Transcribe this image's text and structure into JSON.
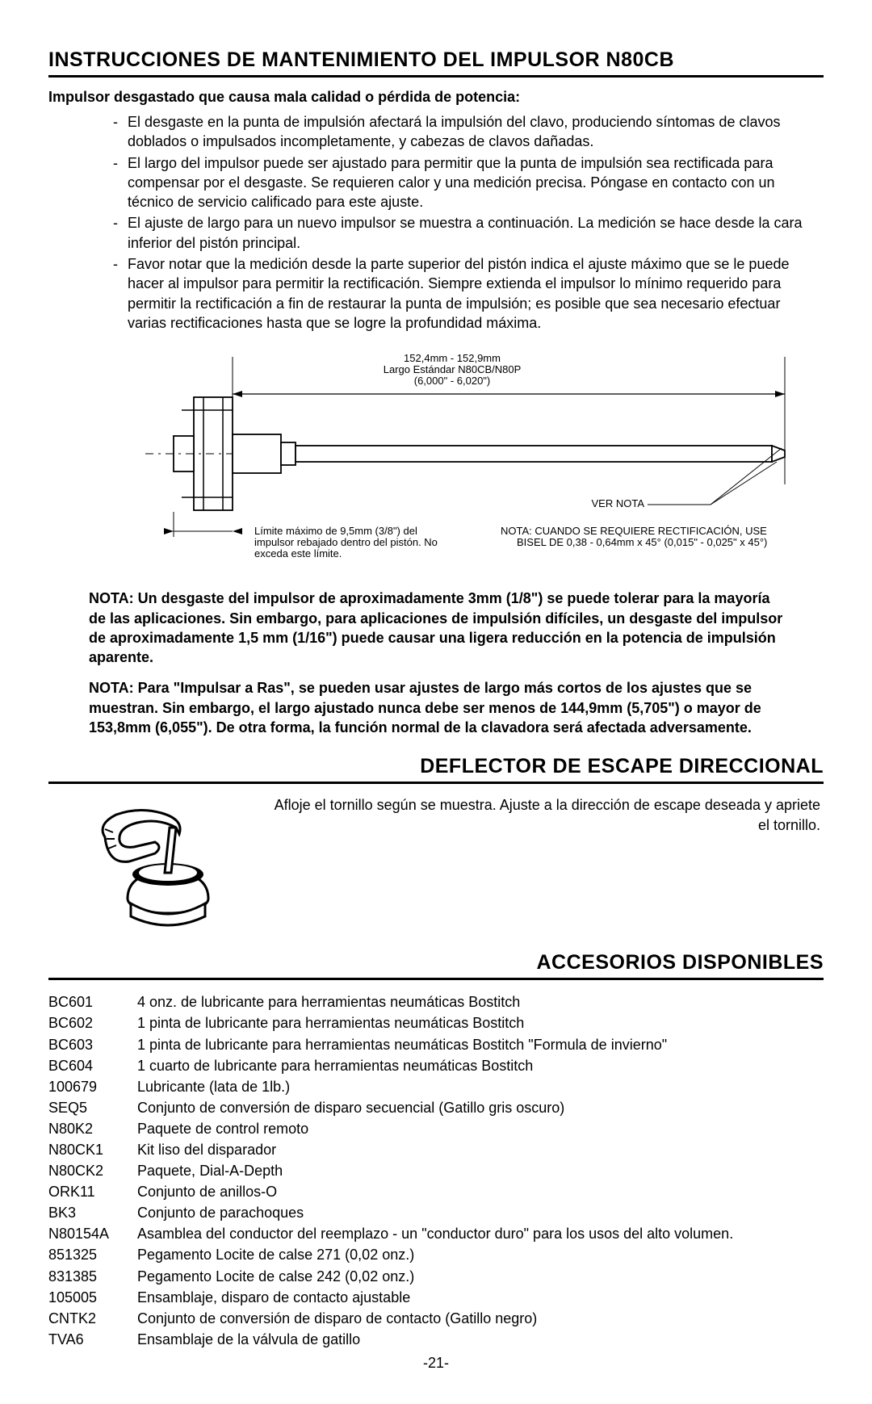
{
  "section1": {
    "title": "INSTRUCCIONES DE MANTENIMIENTO DEL IMPULSOR N80CB",
    "lead": "Impulsor desgastado que causa mala calidad o pérdida de potencia:",
    "bullets": [
      "El desgaste en la punta de impulsión afectará la impulsión del clavo, produciendo síntomas de clavos doblados o impulsados incompletamente, y cabezas de clavos dañadas.",
      "El largo del impulsor puede ser ajustado para permitir que la punta de impulsión sea rectificada para compensar por el desgaste. Se requieren calor y una medición precisa. Póngase en contacto con un técnico de servicio calificado para este ajuste.",
      "El ajuste de largo para un nuevo impulsor se muestra a continuación. La medición se hace desde la cara inferior del pistón principal.",
      "Favor notar que la medición desde la parte superior del pistón indica el ajuste máximo que se le puede hacer al impulsor para permitir la rectificación. Siempre extienda el impulsor lo mínimo requerido para permitir la rectificación a fin de restaurar la punta de impulsión; es posible que sea necesario efectuar varias rectificaciones hasta que se logre la profundidad máxima."
    ]
  },
  "diagram": {
    "top_label_line1": "152,4mm - 152,9mm",
    "top_label_line2": "Largo Estándar N80CB/N80P",
    "top_label_line3": "(6,000\" - 6,020\")",
    "ver_nota": "VER NOTA",
    "left_note_line1": "Límite máximo de 9,5mm (3/8\") del",
    "left_note_line2": "impulsor rebajado dentro del pistón. No",
    "left_note_line3": "exceda este límite.",
    "right_note_line1": "NOTA: CUANDO SE REQUIERE RECTIFICACIÓN, USE",
    "right_note_line2": "BISEL DE 0,38 - 0,64mm x 45° (0,015\" - 0,025\" x 45°)",
    "stroke": "#000000",
    "bg": "#ffffff"
  },
  "notes": {
    "n1": "NOTA: Un desgaste del impulsor de aproximadamente 3mm (1/8\") se puede tolerar para la mayoría de las aplicaciones. Sin embargo, para aplicaciones de impulsión difíciles, un desgaste del impulsor de aproximadamente 1,5 mm (1/16\") puede causar una ligera reducción en la potencia de impulsión aparente.",
    "n2": "NOTA: Para \"Impulsar a Ras\", se pueden usar ajustes de largo más cortos de los ajustes que se muestran. Sin embargo, el largo ajustado nunca debe ser menos de 144,9mm (5,705\") o mayor de 153,8mm (6,055\"). De otra forma, la función normal de la clavadora será afectada adversamente."
  },
  "section2": {
    "title": "DEFLECTOR DE ESCAPE DIRECCIONAL",
    "body": "Afloje el tornillo según se muestra. Ajuste a la dirección de escape deseada y apriete el tornillo."
  },
  "section3": {
    "title": "ACCESORIOS DISPONIBLES",
    "items": [
      {
        "code": "BC601",
        "desc": "4 onz. de lubricante para herramientas neumáticas Bostitch"
      },
      {
        "code": "BC602",
        "desc": "1 pinta de lubricante para herramientas neumáticas Bostitch"
      },
      {
        "code": "BC603",
        "desc": "1 pinta de lubricante para herramientas neumáticas Bostitch \"Formula de invierno\""
      },
      {
        "code": "BC604",
        "desc": "1 cuarto de lubricante para herramientas neumáticas Bostitch"
      },
      {
        "code": "100679",
        "desc": "Lubricante (lata de 1lb.)"
      },
      {
        "code": "SEQ5",
        "desc": "Conjunto de conversión de disparo secuencial (Gatillo gris oscuro)"
      },
      {
        "code": "N80K2",
        "desc": "Paquete de control remoto"
      },
      {
        "code": "N80CK1",
        "desc": "Kit liso del disparador"
      },
      {
        "code": "N80CK2",
        "desc": "Paquete, Dial-A-Depth"
      },
      {
        "code": "ORK11",
        "desc": "Conjunto de anillos-O"
      },
      {
        "code": "BK3",
        "desc": "Conjunto de parachoques"
      },
      {
        "code": "N80154A",
        "desc": "Asamblea del conductor del reemplazo - un \"conductor duro\" para los usos del alto volumen."
      },
      {
        "code": "851325",
        "desc": "Pegamento Locite de calse 271 (0,02 onz.)"
      },
      {
        "code": "831385",
        "desc": "Pegamento Locite de calse 242 (0,02 onz.)"
      },
      {
        "code": "105005",
        "desc": "Ensamblaje, disparo de contacto ajustable"
      },
      {
        "code": "CNTK2",
        "desc": "Conjunto de conversión de disparo de contacto (Gatillo negro)"
      },
      {
        "code": "TVA6",
        "desc": "Ensamblaje de la válvula de gatillo"
      }
    ]
  },
  "page_number": "-21-"
}
